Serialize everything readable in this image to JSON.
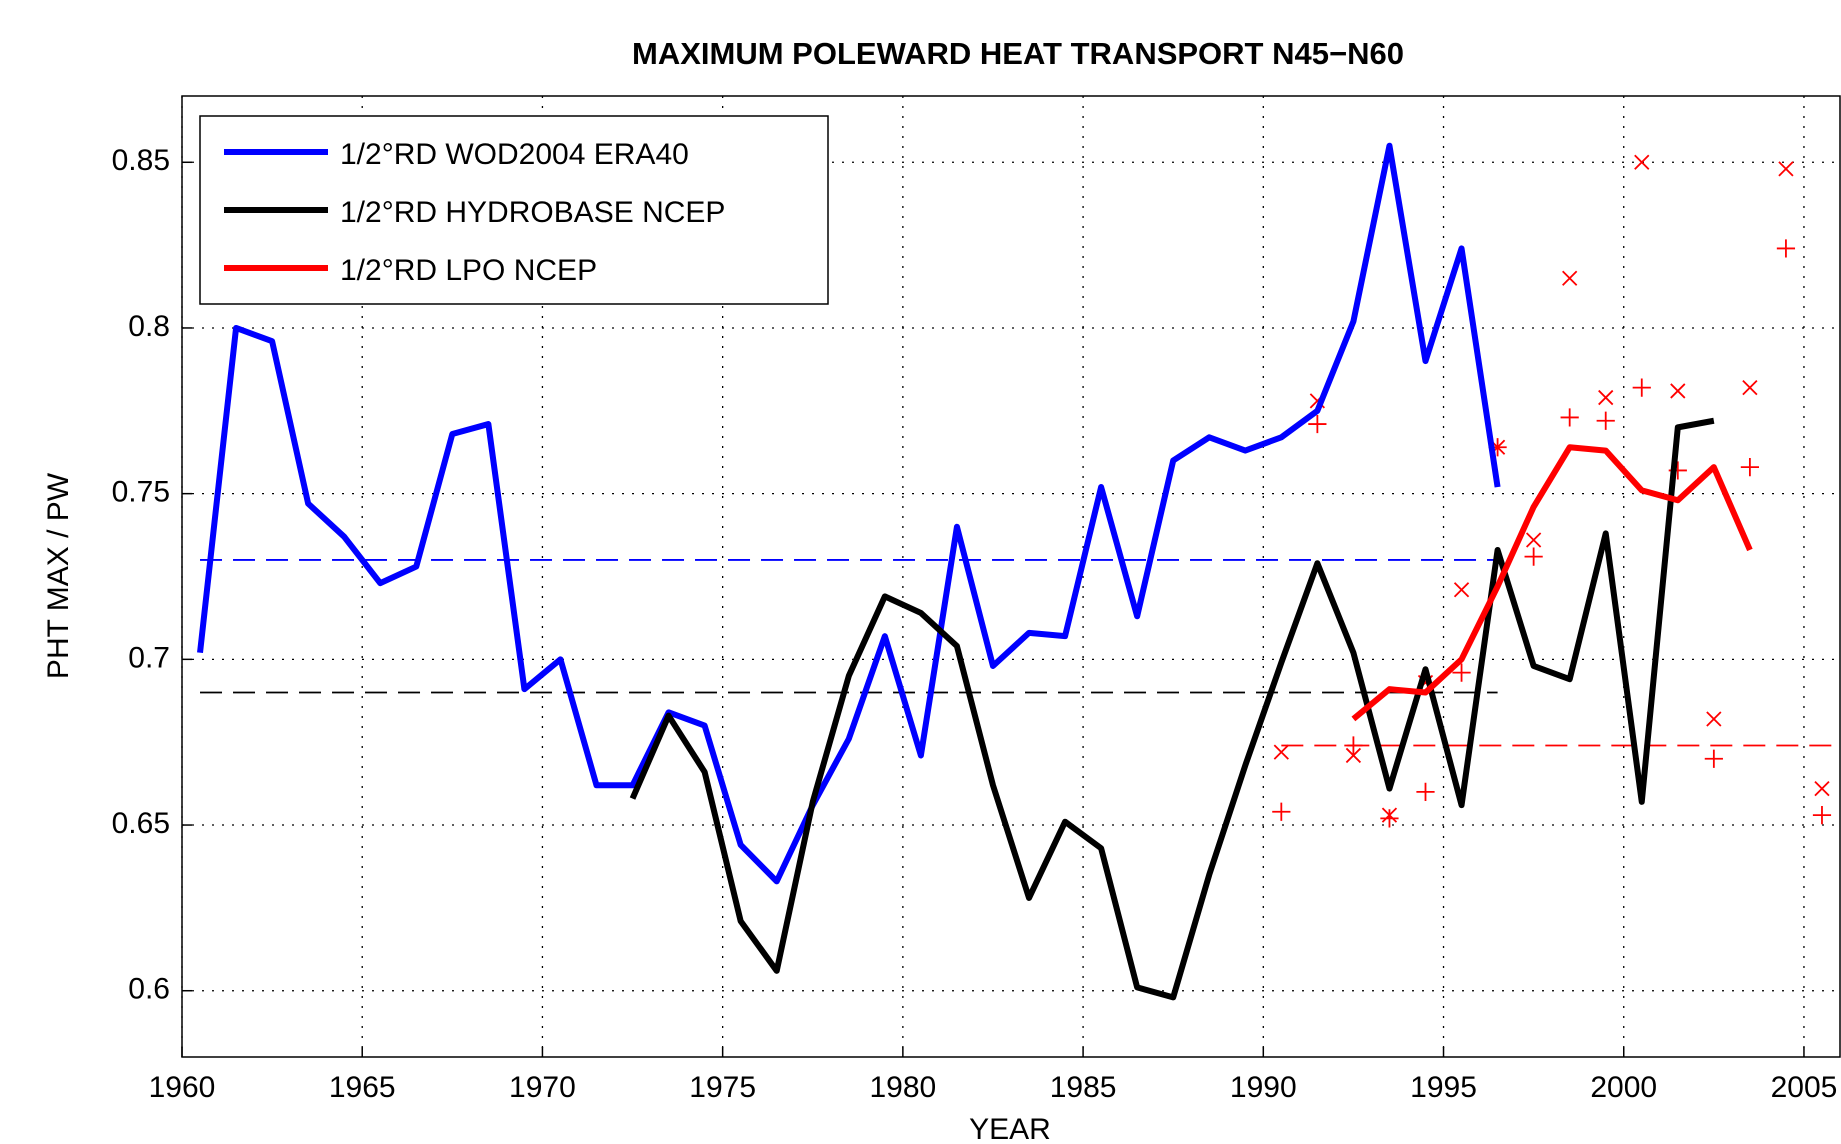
{
  "chart_data": {
    "type": "line",
    "title": "MAXIMUM POLEWARD HEAT TRANSPORT N45−N60",
    "x_label": "YEAR",
    "y_label": "PHT MAX / PW",
    "xlim": [
      1960,
      2006
    ],
    "xticks": [
      1960,
      1965,
      1970,
      1975,
      1980,
      1985,
      1990,
      1995,
      2000,
      2005
    ],
    "ylim": [
      0.58,
      0.87
    ],
    "yticks": [
      0.6,
      0.65,
      0.7,
      0.75,
      0.8,
      0.85
    ],
    "grid": true,
    "legend": "upper left",
    "series": [
      {
        "name": "1/2°RD WOD2004 ERA40",
        "color": "#0000ff",
        "x": [
          1960.5,
          1961.5,
          1962.5,
          1963.5,
          1964.5,
          1965.5,
          1966.5,
          1967.5,
          1968.5,
          1969.5,
          1970.5,
          1971.5,
          1972.5,
          1973.5,
          1974.5,
          1975.5,
          1976.5,
          1977.5,
          1978.5,
          1979.5,
          1980.5,
          1981.5,
          1982.5,
          1983.5,
          1984.5,
          1985.5,
          1986.5,
          1987.5,
          1988.5,
          1989.5,
          1990.5,
          1991.5,
          1992.5,
          1993.5,
          1994.5,
          1995.5,
          1996.5
        ],
        "values": [
          0.702,
          0.8,
          0.796,
          0.747,
          0.737,
          0.723,
          0.728,
          0.768,
          0.771,
          0.691,
          0.7,
          0.662,
          0.662,
          0.684,
          0.68,
          0.644,
          0.633,
          0.656,
          0.676,
          0.707,
          0.671,
          0.74,
          0.698,
          0.708,
          0.707,
          0.752,
          0.713,
          0.76,
          0.767,
          0.763,
          0.767,
          0.775,
          0.802,
          0.855,
          0.79,
          0.824,
          0.752
        ]
      },
      {
        "name": "1/2°RD HYDROBASE NCEP",
        "color": "#000000",
        "x": [
          1972.5,
          1973.5,
          1974.5,
          1975.5,
          1976.5,
          1977.5,
          1978.5,
          1979.5,
          1980.5,
          1981.5,
          1982.5,
          1983.5,
          1984.5,
          1985.5,
          1986.5,
          1987.5,
          1988.5,
          1989.5,
          1990.5,
          1991.5,
          1992.5,
          1993.5,
          1994.5,
          1995.5,
          1996.5,
          1997.5,
          1998.5,
          1999.5,
          2000.5,
          2001.5,
          2002.5
        ],
        "values": [
          0.658,
          0.683,
          0.666,
          0.621,
          0.606,
          0.657,
          0.695,
          0.719,
          0.714,
          0.704,
          0.662,
          0.628,
          0.651,
          0.643,
          0.601,
          0.598,
          0.635,
          0.668,
          0.699,
          0.729,
          0.702,
          0.661,
          0.697,
          0.656,
          0.733,
          0.698,
          0.694,
          0.738,
          0.657,
          0.77,
          0.772
        ]
      },
      {
        "name": "1/2°RD LPO NCEP",
        "color": "#ff0000",
        "x": [
          1992.5,
          1993.5,
          1994.5,
          1995.5,
          1996.5,
          1997.5,
          1998.5,
          1999.5,
          2000.5,
          2001.5,
          2002.5,
          2003.5
        ],
        "values": [
          0.682,
          0.691,
          0.69,
          0.7,
          0.722,
          0.746,
          0.764,
          0.763,
          0.751,
          0.748,
          0.758,
          0.733
        ]
      }
    ],
    "markers": [
      {
        "marker": "x",
        "color": "#ff0000",
        "x": [
          1990.5,
          1991.5,
          1992.5,
          1993.5,
          1994.5,
          1995.5,
          1996.5,
          1997.5,
          1998.5,
          1999.5,
          2000.5,
          2001.5,
          2002.5,
          2003.5,
          2004.5,
          2005.5
        ],
        "values": [
          0.672,
          0.778,
          0.671,
          0.653,
          0.693,
          0.721,
          0.764,
          0.736,
          0.815,
          0.779,
          0.85,
          0.781,
          0.682,
          0.782,
          0.848,
          0.661
        ]
      },
      {
        "marker": "+",
        "color": "#ff0000",
        "x": [
          1990.5,
          1991.5,
          1992.5,
          1993.5,
          1994.5,
          1995.5,
          1996.5,
          1997.5,
          1998.5,
          1999.5,
          2000.5,
          2001.5,
          2002.5,
          2003.5,
          2004.5,
          2005.5
        ],
        "values": [
          0.654,
          0.771,
          0.674,
          0.652,
          0.66,
          0.696,
          0.764,
          0.731,
          0.773,
          0.772,
          0.782,
          0.757,
          0.67,
          0.758,
          0.824,
          0.653
        ]
      }
    ],
    "mean_lines": [
      {
        "color": "#0000ff",
        "value": 0.73,
        "x": [
          1960.5,
          1996.5
        ]
      },
      {
        "color": "#000000",
        "value": 0.69,
        "x": [
          1960.5,
          1996.5
        ]
      },
      {
        "color": "#ff0000",
        "value": 0.674,
        "x": [
          1990.5,
          2006
        ]
      }
    ]
  }
}
